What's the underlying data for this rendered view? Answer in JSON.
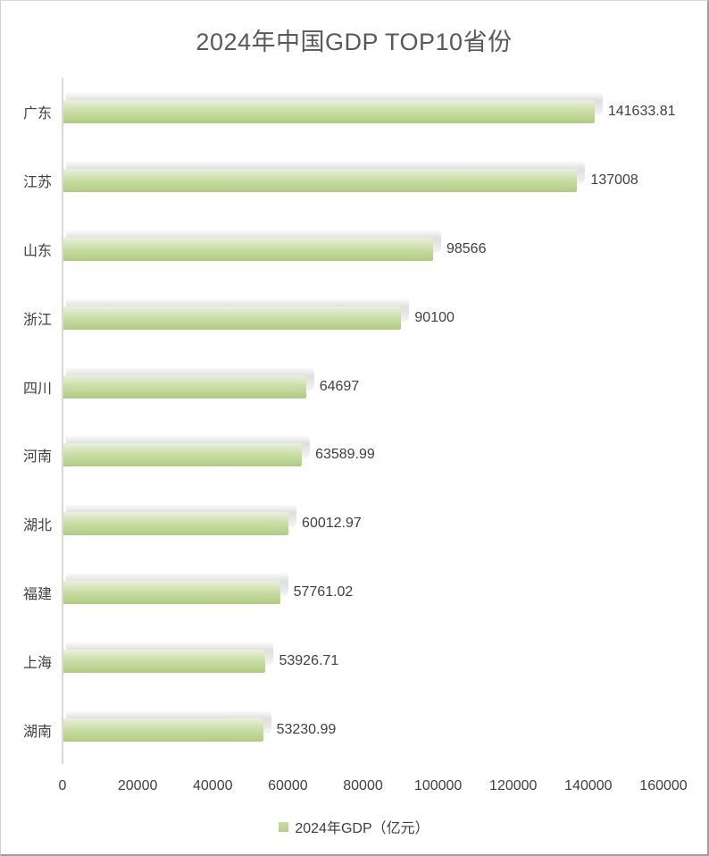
{
  "chart_data": {
    "type": "bar",
    "orientation": "horizontal",
    "title": "2024年中国GDP TOP10省份",
    "series_name": "2024年GDP（亿元）",
    "categories": [
      "广东",
      "江苏",
      "山东",
      "浙江",
      "四川",
      "河南",
      "湖北",
      "福建",
      "上海",
      "湖南"
    ],
    "values": [
      141633.81,
      137008,
      98566,
      90100,
      64697,
      63589.99,
      60012.97,
      57761.02,
      53926.71,
      53230.99
    ],
    "value_labels": [
      "141633.81",
      "137008",
      "98566",
      "90100",
      "64697",
      "63589.99",
      "60012.97",
      "57761.02",
      "53926.71",
      "53230.99"
    ],
    "xlabel": "",
    "ylabel": "",
    "xlim": [
      0,
      160000
    ],
    "x_ticks": [
      0,
      20000,
      40000,
      60000,
      80000,
      100000,
      120000,
      140000,
      160000
    ],
    "grid": false,
    "legend_position": "bottom",
    "colors": {
      "bar_gradient_top": "#e9f1dd",
      "bar_gradient_mid": "#cbdda6",
      "bar_gradient_bottom": "#b0cc80",
      "legend_swatch_top": "#ccdca8",
      "legend_swatch_bottom": "#b5cf87",
      "title_text": "#595959",
      "label_text": "#3f3f3f",
      "axis_line": "#d9d9d9"
    }
  }
}
